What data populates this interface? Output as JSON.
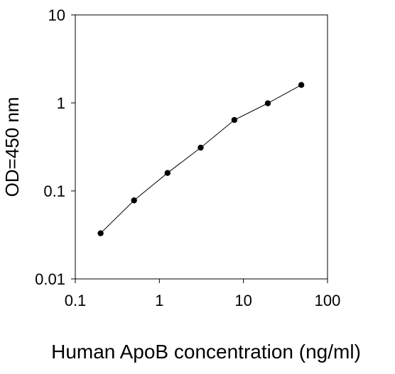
{
  "chart_data": {
    "type": "line",
    "title": "",
    "xlabel": "Human ApoB concentration (ng/ml)",
    "ylabel": "OD=450 nm",
    "x_scale": "log",
    "y_scale": "log",
    "xlim": [
      0.1,
      100
    ],
    "ylim": [
      0.01,
      10
    ],
    "x_ticks": [
      "0.1",
      "1",
      "10",
      "100"
    ],
    "y_ticks": [
      "0.01",
      "0.1",
      "1",
      "10"
    ],
    "grid": false,
    "legend": "none",
    "series": [
      {
        "x": [
          0.2,
          0.5,
          1.25,
          3.1,
          7.8,
          19.5,
          48.8
        ],
        "y": [
          0.033,
          0.078,
          0.16,
          0.31,
          0.64,
          0.99,
          1.6
        ],
        "color": "#000000",
        "marker": "circle"
      }
    ]
  }
}
